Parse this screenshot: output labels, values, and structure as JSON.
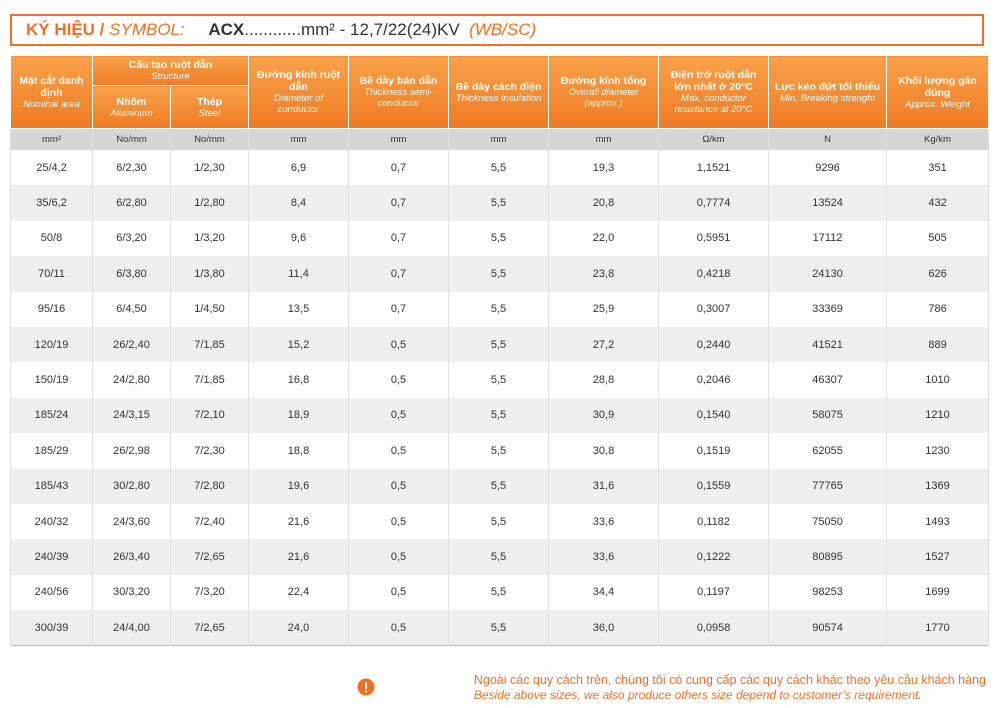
{
  "symbol": {
    "label_vi": "KÝ HIỆU /",
    "label_en": "SYMBOL:",
    "code": "ACX",
    "spec": "............mm² - 12,7/22(24)KV",
    "suffix": "(WB/SC)"
  },
  "table": {
    "group": {
      "vi": "Cấu tạo ruột dẫn",
      "en": "Structure"
    },
    "columns": [
      {
        "vi": "Mặt cắt danh định",
        "en": "Nominal area"
      },
      {
        "vi": "Nhôm",
        "en": "Aluminum"
      },
      {
        "vi": "Thép",
        "en": "Steel"
      },
      {
        "vi": "Đường kính ruột dẫn",
        "en": "Diameter of conductor"
      },
      {
        "vi": "Bề dày bán dẫn",
        "en": "Thickness semi-conductor"
      },
      {
        "vi": "Bề dày cách điện",
        "en": "Thickness insulation"
      },
      {
        "vi": "Đường kính tổng",
        "en": "Overall diameter (approx.)"
      },
      {
        "vi": "Điện trở ruột dẫn lớn nhất ở 20°C",
        "en": "Max. conductor resistance at 20°C"
      },
      {
        "vi": "Lực kéo đứt tối thiểu",
        "en": "Min. Breaking strenght"
      },
      {
        "vi": "Khối lượng gần đúng",
        "en": "Approx. Weight"
      }
    ],
    "units": [
      "mm²",
      "No/mm",
      "No/mm",
      "mm",
      "mm",
      "mm",
      "mm",
      "Ω/km",
      "N",
      "Kg/km"
    ],
    "rows": [
      [
        "25/4,2",
        "6/2,30",
        "1/2,30",
        "6,9",
        "0,7",
        "5,5",
        "19,3",
        "1,1521",
        "9296",
        "351"
      ],
      [
        "35/6,2",
        "6/2,80",
        "1/2,80",
        "8,4",
        "0,7",
        "5,5",
        "20,8",
        "0,7774",
        "13524",
        "432"
      ],
      [
        "50/8",
        "6/3,20",
        "1/3,20",
        "9,6",
        "0,7",
        "5,5",
        "22,0",
        "0,5951",
        "17112",
        "505"
      ],
      [
        "70/11",
        "6/3,80",
        "1/3,80",
        "11,4",
        "0,7",
        "5,5",
        "23,8",
        "0,4218",
        "24130",
        "626"
      ],
      [
        "95/16",
        "6/4,50",
        "1/4,50",
        "13,5",
        "0,7",
        "5,5",
        "25,9",
        "0,3007",
        "33369",
        "786"
      ],
      [
        "120/19",
        "26/2,40",
        "7/1,85",
        "15,2",
        "0,5",
        "5,5",
        "27,2",
        "0,2440",
        "41521",
        "889"
      ],
      [
        "150/19",
        "24/2,80",
        "7/1,85",
        "16,8",
        "0,5",
        "5,5",
        "28,8",
        "0,2046",
        "46307",
        "1010"
      ],
      [
        "185/24",
        "24/3,15",
        "7/2,10",
        "18,9",
        "0,5",
        "5,5",
        "30,9",
        "0,1540",
        "58075",
        "1210"
      ],
      [
        "185/29",
        "26/2,98",
        "7/2,30",
        "18,8",
        "0,5",
        "5,5",
        "30,8",
        "0,1519",
        "62055",
        "1230"
      ],
      [
        "185/43",
        "30/2,80",
        "7/2,80",
        "19,6",
        "0,5",
        "5,5",
        "31,6",
        "0,1559",
        "77765",
        "1369"
      ],
      [
        "240/32",
        "24/3,60",
        "7/2,40",
        "21,6",
        "0,5",
        "5,5",
        "33,6",
        "0,1182",
        "75050",
        "1493"
      ],
      [
        "240/39",
        "26/3,40",
        "7/2,65",
        "21,6",
        "0,5",
        "5,5",
        "33,6",
        "0,1222",
        "80895",
        "1527"
      ],
      [
        "240/56",
        "30/3,20",
        "7/3,20",
        "22,4",
        "0,5",
        "5,5",
        "34,4",
        "0,1197",
        "98253",
        "1699"
      ],
      [
        "300/39",
        "24/4,00",
        "7/2,65",
        "24,0",
        "0,5",
        "5,5",
        "36,0",
        "0,0958",
        "90574",
        "1770"
      ]
    ]
  },
  "note": {
    "vi": "Ngoài các quy cách trên, chúng tôi có cung cấp các quy cách khác theo yêu cầu khách hàng",
    "en": "Beside above sizes, we also produce others size depend to customer’s requirement."
  }
}
